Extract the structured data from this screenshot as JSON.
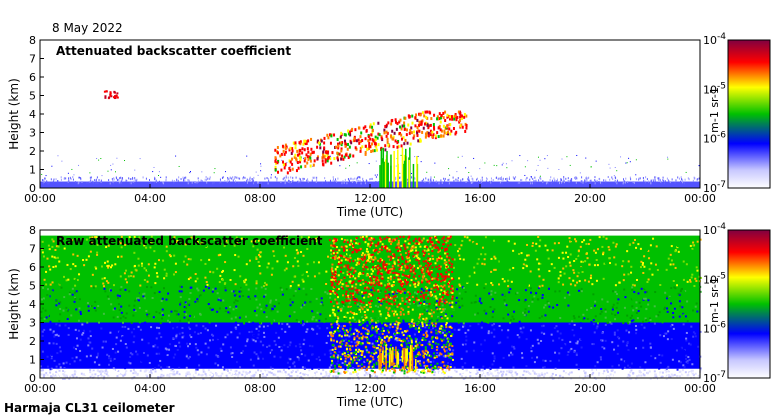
{
  "date_label": "8 May 2022",
  "footer_label": "Harmaja CL31 ceilometer",
  "colormap": [
    "#ffffff",
    "#c8c8ff",
    "#0000ff",
    "#00c000",
    "#ffff00",
    "#ff0000",
    "#800040"
  ],
  "chart_data": [
    {
      "type": "heatmap",
      "title": "Attenuated backscatter coefficient",
      "xlabel": "Time (UTC)",
      "ylabel": "Height (km)",
      "xlim": [
        "00:00",
        "24:00"
      ],
      "ylim": [
        0,
        8
      ],
      "xticks": [
        "00:00",
        "04:00",
        "08:00",
        "12:00",
        "16:00",
        "20:00",
        "00:00"
      ],
      "yticks": [
        "0",
        "1",
        "2",
        "3",
        "4",
        "5",
        "6",
        "7",
        "8"
      ],
      "colorbar": {
        "label": "m-1 sr-1",
        "scale": "log",
        "range": [
          1e-07,
          0.0001
        ],
        "ticks": [
          "10-7",
          "10-6",
          "10-5",
          "10-4"
        ]
      }
    },
    {
      "type": "heatmap",
      "title": "Raw attenuated backscatter coefficient",
      "xlabel": "Time (UTC)",
      "ylabel": "Height (km)",
      "xlim": [
        "00:00",
        "24:00"
      ],
      "ylim": [
        0,
        8
      ],
      "xticks": [
        "00:00",
        "04:00",
        "08:00",
        "12:00",
        "16:00",
        "20:00",
        "00:00"
      ],
      "yticks": [
        "0",
        "1",
        "2",
        "3",
        "4",
        "5",
        "6",
        "7",
        "8"
      ],
      "colorbar": {
        "label": "m-1 sr-1",
        "scale": "log",
        "range": [
          1e-07,
          0.0001
        ],
        "ticks": [
          "10-7",
          "10-6",
          "10-5",
          "10-4"
        ]
      }
    }
  ]
}
